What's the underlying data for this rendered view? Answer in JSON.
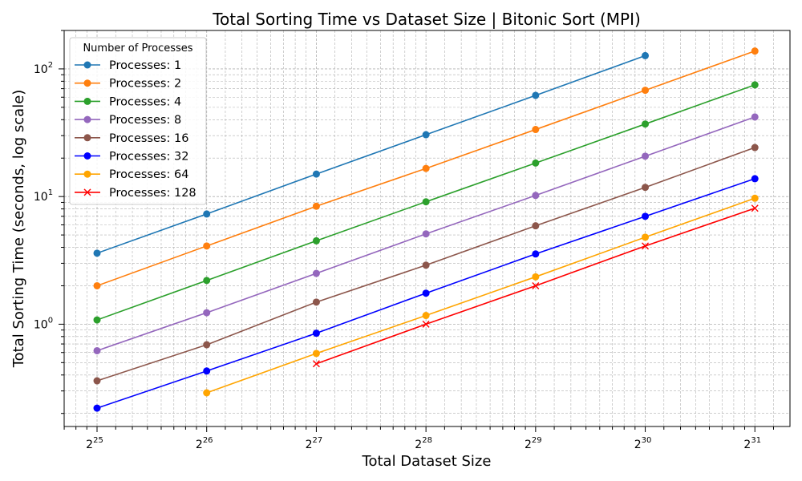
{
  "chart_data": {
    "type": "line",
    "title": "Total Sorting Time vs Dataset Size | Bitonic Sort (MPI)",
    "xlabel": "Total Dataset Size",
    "ylabel": "Total Sorting Time (seconds, log scale)",
    "x_scale": "log2",
    "y_scale": "log10",
    "x_ticks": [
      "2^25",
      "2^26",
      "2^27",
      "2^28",
      "2^29",
      "2^30",
      "2^31"
    ],
    "x_tick_base": "2",
    "x_tick_exponents": [
      "25",
      "26",
      "27",
      "28",
      "29",
      "30",
      "31"
    ],
    "y_ticks_base": "10",
    "y_ticks_exponents": [
      "0",
      "1",
      "2"
    ],
    "grid": true,
    "legend_title": "Number of Processes",
    "legend_position": "top-left",
    "series": [
      {
        "name": "Processes: 1",
        "color": "#1f77b4",
        "marker": "circle",
        "x": [
          "2^25",
          "2^26",
          "2^27",
          "2^28",
          "2^29",
          "2^30"
        ],
        "values": [
          3.6,
          7.3,
          15.0,
          30.5,
          62.0,
          127.0
        ]
      },
      {
        "name": "Processes: 2",
        "color": "#ff7f0e",
        "marker": "circle",
        "x": [
          "2^25",
          "2^26",
          "2^27",
          "2^28",
          "2^29",
          "2^30",
          "2^31"
        ],
        "values": [
          2.0,
          4.1,
          8.4,
          16.6,
          33.5,
          68.0,
          138.0
        ]
      },
      {
        "name": "Processes: 4",
        "color": "#2ca02c",
        "marker": "circle",
        "x": [
          "2^25",
          "2^26",
          "2^27",
          "2^28",
          "2^29",
          "2^30",
          "2^31"
        ],
        "values": [
          1.08,
          2.2,
          4.5,
          9.1,
          18.3,
          37.0,
          75.0
        ]
      },
      {
        "name": "Processes: 8",
        "color": "#9467bd",
        "marker": "circle",
        "x": [
          "2^25",
          "2^26",
          "2^27",
          "2^28",
          "2^29",
          "2^30",
          "2^31"
        ],
        "values": [
          0.62,
          1.23,
          2.5,
          5.1,
          10.2,
          20.7,
          42.0
        ]
      },
      {
        "name": "Processes: 16",
        "color": "#8c564b",
        "marker": "circle",
        "x": [
          "2^25",
          "2^26",
          "2^27",
          "2^28",
          "2^29",
          "2^30",
          "2^31"
        ],
        "values": [
          0.36,
          0.69,
          1.49,
          2.9,
          5.9,
          11.8,
          24.2
        ]
      },
      {
        "name": "Processes: 32",
        "color": "#0000ff",
        "marker": "circle",
        "x": [
          "2^25",
          "2^26",
          "2^27",
          "2^28",
          "2^29",
          "2^30",
          "2^31"
        ],
        "values": [
          0.22,
          0.43,
          0.85,
          1.75,
          3.55,
          7.0,
          13.8
        ]
      },
      {
        "name": "Processes: 64",
        "color": "#ffa500",
        "marker": "circle",
        "x": [
          "2^26",
          "2^27",
          "2^28",
          "2^29",
          "2^30",
          "2^31"
        ],
        "values": [
          0.29,
          0.59,
          1.17,
          2.35,
          4.8,
          9.7
        ]
      },
      {
        "name": "Processes: 128",
        "color": "#ff0000",
        "marker": "x",
        "x": [
          "2^27",
          "2^28",
          "2^29",
          "2^30",
          "2^31"
        ],
        "values": [
          0.49,
          1.0,
          2.0,
          4.1,
          8.1
        ]
      }
    ]
  }
}
